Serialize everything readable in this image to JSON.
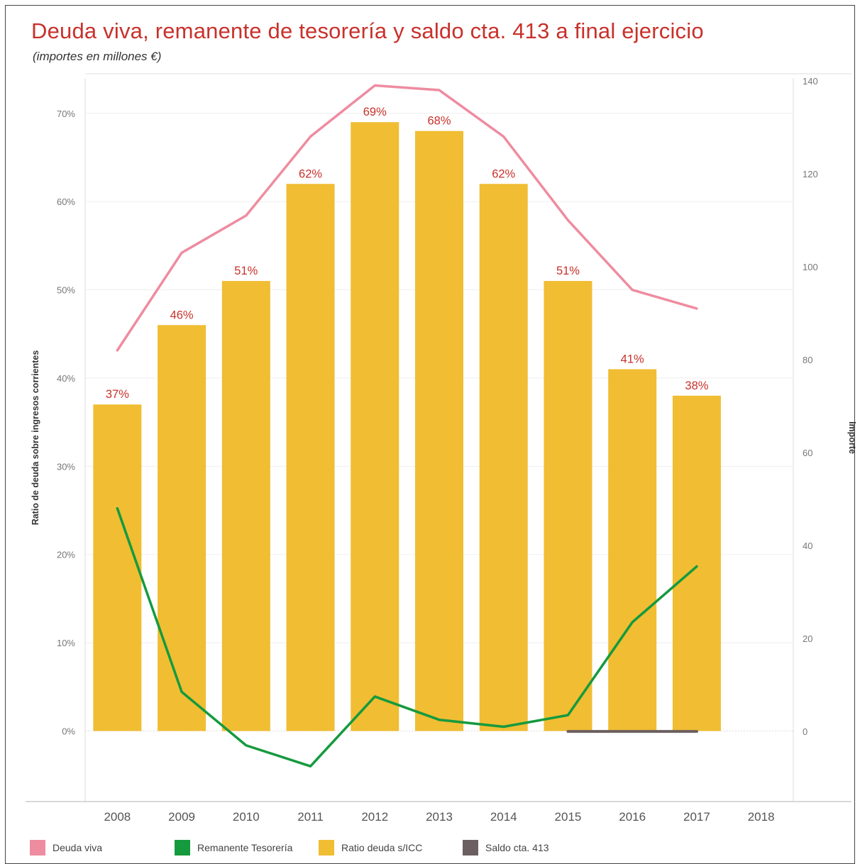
{
  "title": "Deuda viva, remanente de tesorería y saldo cta. 413  a final ejercicio",
  "subtitle": "(importes en millones €)",
  "chart_data": {
    "type": "bar",
    "categories": [
      "2008",
      "2009",
      "2010",
      "2011",
      "2012",
      "2013",
      "2014",
      "2015",
      "2016",
      "2017",
      "2018"
    ],
    "ylabel": "Ratio de deuda sobre ingresos corrientes",
    "y2label": "Importe",
    "ylim": [
      -0.08,
      0.74
    ],
    "y2lim": [
      -15.1,
      140.6
    ],
    "yticks": [
      "0%",
      "10%",
      "20%",
      "30%",
      "40%",
      "50%",
      "60%",
      "70%"
    ],
    "y2ticks": [
      "0",
      "20",
      "40",
      "60",
      "80",
      "100",
      "120",
      "140"
    ],
    "grid": true,
    "legend_position": "bottom",
    "series": [
      {
        "name": "Ratio deuda s/ICC",
        "type": "bar",
        "axis": "left",
        "color": "#f0bd33",
        "values": [
          0.37,
          0.46,
          0.51,
          0.62,
          0.69,
          0.68,
          0.62,
          0.51,
          0.41,
          0.38,
          null
        ],
        "labels": [
          "37%",
          "46%",
          "51%",
          "62%",
          "69%",
          "68%",
          "62%",
          "51%",
          "41%",
          "38%",
          ""
        ]
      },
      {
        "name": "Deuda viva",
        "type": "line",
        "axis": "right",
        "color": "#ee8ca0",
        "values": [
          82,
          103,
          111,
          128,
          139,
          138,
          128,
          110,
          95,
          91,
          null
        ]
      },
      {
        "name": "Remanente Tesorería",
        "type": "line",
        "axis": "right",
        "color": "#159a3e",
        "values": [
          48,
          8.5,
          -3,
          -7.5,
          7.5,
          2.5,
          1,
          3.5,
          23.5,
          35.5,
          null
        ]
      },
      {
        "name": "Saldo cta. 413",
        "type": "line",
        "axis": "right",
        "color": "#6b5f5f",
        "values": [
          null,
          null,
          null,
          null,
          null,
          null,
          null,
          0,
          0,
          0,
          null
        ]
      }
    ]
  }
}
